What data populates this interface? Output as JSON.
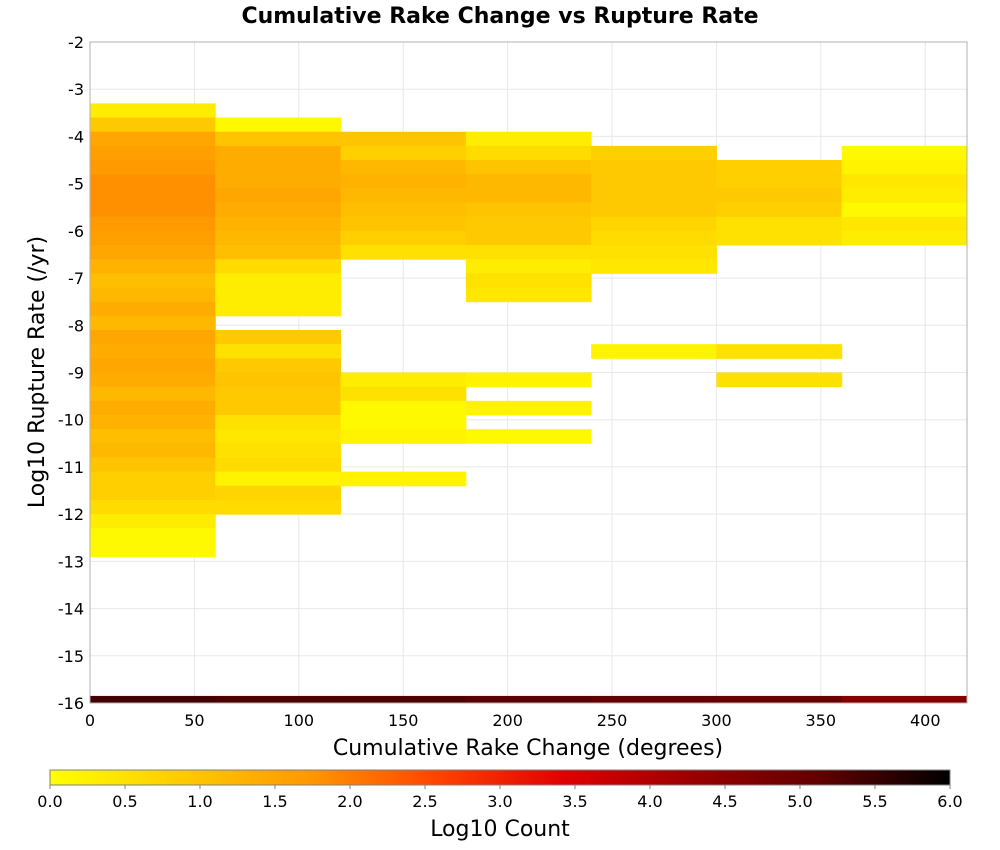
{
  "chart_data": {
    "type": "heatmap",
    "title": "Cumulative Rake Change vs Rupture Rate",
    "xlabel": "Cumulative Rake Change (degrees)",
    "ylabel": "Log10 Rupture Rate (/yr)",
    "xlim": [
      0,
      420
    ],
    "ylim": [
      -16,
      -2
    ],
    "x_ticks": [
      "0",
      "50",
      "100",
      "150",
      "200",
      "250",
      "300",
      "350",
      "400"
    ],
    "y_ticks": [
      "-2",
      "-3",
      "-4",
      "-5",
      "-6",
      "-7",
      "-8",
      "-9",
      "-10",
      "-11",
      "-12",
      "-13",
      "-14",
      "-15",
      "-16"
    ],
    "x_bin_width": 60,
    "y_bin_height": 0.3,
    "grid": true,
    "colorbar": {
      "label": "Log10 Count",
      "min": 0.0,
      "max": 6.0,
      "ticks": [
        "0.0",
        "0.5",
        "1.0",
        "1.5",
        "2.0",
        "2.5",
        "3.0",
        "3.5",
        "4.0",
        "4.5",
        "5.0",
        "5.5",
        "6.0"
      ],
      "colors": [
        "#ffff00",
        "#ffcc00",
        "#ff9900",
        "#ff4400",
        "#e00000",
        "#990000",
        "#600000",
        "#000000"
      ]
    },
    "columns": [
      {
        "x0": 0,
        "x1": 60,
        "y_top": -3.3,
        "values": [
          0.3,
          0.9,
          1.5,
          1.6,
          1.7,
          1.8,
          1.8,
          1.8,
          1.7,
          1.6,
          1.5,
          1.3,
          1.1,
          1.2,
          1.4,
          1.2,
          1.5,
          1.4,
          1.5,
          1.4,
          1.2,
          1.4,
          1.3,
          1.1,
          1.2,
          1.0,
          0.8,
          0.8,
          0.6,
          0.3,
          0.1,
          0.1
        ]
      },
      {
        "x0": 60,
        "x1": 120,
        "y_top": -3.6,
        "values": [
          0.1,
          1.0,
          1.4,
          1.4,
          1.4,
          1.5,
          1.4,
          1.3,
          1.2,
          1.1,
          0.6,
          0.3,
          0.3,
          0.3,
          -1,
          0.9,
          0.5,
          0.9,
          1.0,
          0.9,
          0.9,
          0.5,
          0.4,
          0.5,
          0.6,
          0.2,
          0.7,
          0.6
        ]
      },
      {
        "x0": 120,
        "x1": 180,
        "y_top": -3.9,
        "values": [
          1.0,
          0.8,
          1.2,
          1.3,
          1.2,
          1.1,
          1.0,
          0.8,
          0.5,
          -1,
          -1,
          -1,
          -1,
          -1,
          -1,
          -1,
          -1,
          0.3,
          0.5,
          0.1,
          0.1,
          0.2,
          -1,
          -1,
          0.2
        ]
      },
      {
        "x0": 180,
        "x1": 240,
        "y_top": -3.9,
        "values": [
          0.3,
          0.6,
          1.0,
          1.2,
          1.2,
          1.0,
          0.9,
          0.9,
          0.5,
          0.3,
          0.5,
          0.4,
          -1,
          -1,
          -1,
          -1,
          -1,
          0.2,
          -1,
          0.2,
          -1,
          0.1
        ]
      },
      {
        "x0": 240,
        "x1": 300,
        "y_top": -4.2,
        "values": [
          0.8,
          0.9,
          0.9,
          0.9,
          0.9,
          0.7,
          0.6,
          0.5,
          0.4,
          -1,
          -1,
          -1,
          -1,
          -1,
          0.2
        ]
      },
      {
        "x0": 300,
        "x1": 360,
        "y_top": -4.5,
        "values": [
          0.8,
          0.8,
          0.9,
          0.8,
          0.5,
          0.5,
          -1,
          -1,
          -1,
          -1,
          -1,
          -1,
          -1,
          0.5,
          -1,
          0.5
        ]
      },
      {
        "x0": 360,
        "x1": 420,
        "y_top": -4.2,
        "values": [
          0.1,
          0.2,
          0.4,
          0.3,
          0.1,
          0.4,
          0.3
        ]
      }
    ],
    "bottom_row": {
      "y0": -16,
      "y1": -15.85,
      "values": [
        5.4,
        5.3,
        5.3,
        5.2,
        5.1,
        5.0,
        4.6
      ]
    }
  }
}
